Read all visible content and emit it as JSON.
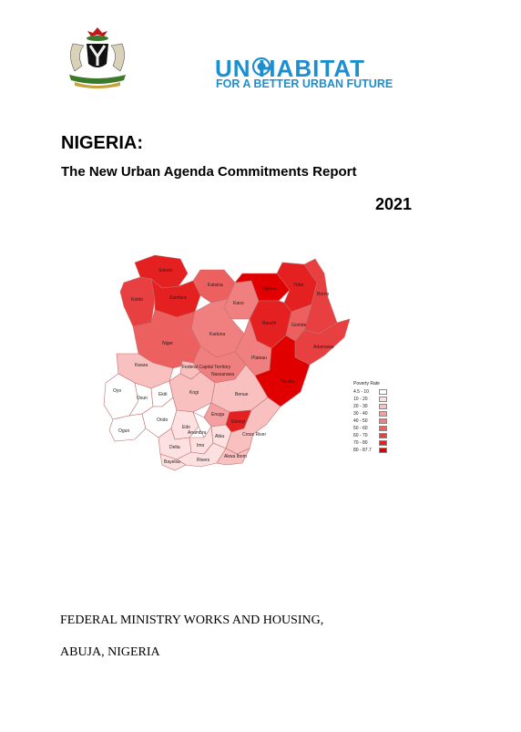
{
  "logo": {
    "icon": "coat-of-arms-icon",
    "un_habitat": "UN  HABITAT",
    "tagline": "FOR A BETTER URBAN FUTURE",
    "brand_color": "#1d8fd0"
  },
  "title": "NIGERIA:",
  "subtitle": "The New Urban Agenda Commitments Report",
  "year": "2021",
  "map": {
    "legend_title": "Poverty Rate",
    "legend": [
      {
        "label": "4.5 - 10",
        "color": "#ffffff"
      },
      {
        "label": "10 - 20",
        "color": "#fde0e0"
      },
      {
        "label": "20 - 30",
        "color": "#f9c0c0"
      },
      {
        "label": "30 - 40",
        "color": "#f5a0a0"
      },
      {
        "label": "40 - 50",
        "color": "#f08080"
      },
      {
        "label": "50 - 60",
        "color": "#ec6060"
      },
      {
        "label": "60 - 70",
        "color": "#e84040"
      },
      {
        "label": "70 - 80",
        "color": "#e42020"
      },
      {
        "label": "80 - 87.7",
        "color": "#e00000"
      }
    ],
    "states": [
      {
        "name": "Sokoto",
        "class": 7
      },
      {
        "name": "Kebbi",
        "class": 6
      },
      {
        "name": "Zamfara",
        "class": 7
      },
      {
        "name": "Katsina",
        "class": 5
      },
      {
        "name": "Kano",
        "class": 4
      },
      {
        "name": "Jigawa",
        "class": 8
      },
      {
        "name": "Yobe",
        "class": 7
      },
      {
        "name": "Borno",
        "class": 6
      },
      {
        "name": "Bauchi",
        "class": 7
      },
      {
        "name": "Gombe",
        "class": 5
      },
      {
        "name": "Kaduna",
        "class": 4
      },
      {
        "name": "Niger",
        "class": 5
      },
      {
        "name": "Kwara",
        "class": 2
      },
      {
        "name": "Federal Capital Territory",
        "class": 2
      },
      {
        "name": "Nassarawa",
        "class": 4
      },
      {
        "name": "Plateau",
        "class": 4
      },
      {
        "name": "Adamawa",
        "class": 6
      },
      {
        "name": "Taraba",
        "class": 8
      },
      {
        "name": "Oyo",
        "class": 0
      },
      {
        "name": "Osun",
        "class": 0
      },
      {
        "name": "Ekiti",
        "class": 0
      },
      {
        "name": "Kogi",
        "class": 2
      },
      {
        "name": "Benue",
        "class": 2
      },
      {
        "name": "Ogun",
        "class": 0
      },
      {
        "name": "Ondo",
        "class": 0
      },
      {
        "name": "Edo",
        "class": 1
      },
      {
        "name": "Enugu",
        "class": 3
      },
      {
        "name": "Ebonyi",
        "class": 7
      },
      {
        "name": "Anambra",
        "class": 0
      },
      {
        "name": "Delta",
        "class": 1
      },
      {
        "name": "Imo",
        "class": 1
      },
      {
        "name": "Abia",
        "class": 1
      },
      {
        "name": "Cross River",
        "class": 2
      },
      {
        "name": "Rivers",
        "class": 1
      },
      {
        "name": "Akwa Ibom",
        "class": 2
      },
      {
        "name": "Bayelsa",
        "class": 1
      }
    ]
  },
  "footer": {
    "ministry": "FEDERAL MINISTRY  WORKS AND HOUSING,",
    "city": "ABUJA, NIGERIA"
  }
}
